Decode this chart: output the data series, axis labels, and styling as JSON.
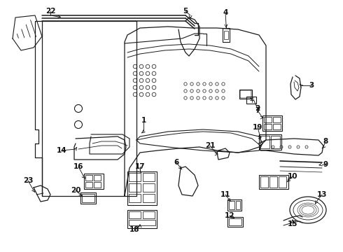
{
  "bg_color": "#ffffff",
  "line_color": "#1a1a1a",
  "text_color": "#111111",
  "fig_w": 4.9,
  "fig_h": 3.6,
  "dpi": 100
}
